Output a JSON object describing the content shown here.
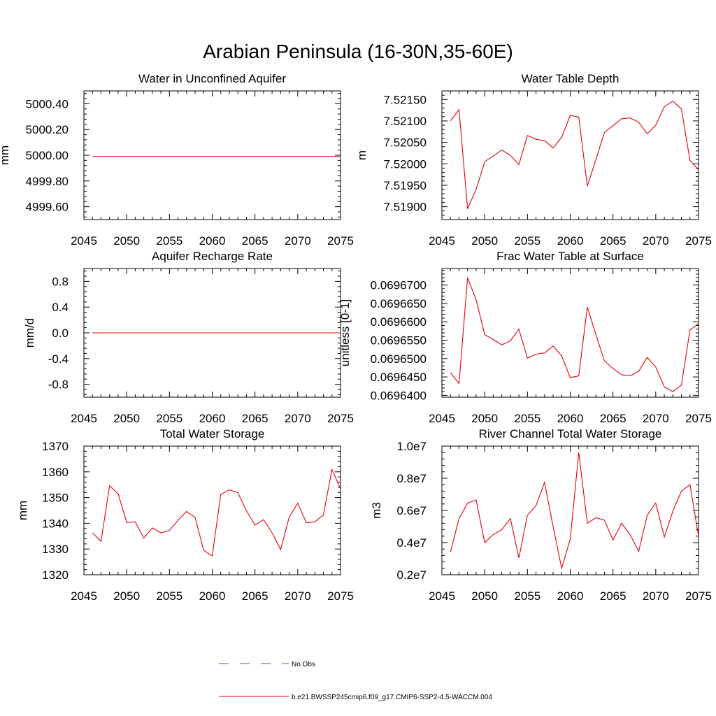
{
  "page": {
    "title": "Arabian Peninsula (16-30N,35-60E)"
  },
  "legend": {
    "placement": "bottom-center",
    "entries": [
      {
        "label": "No Obs",
        "color": "#5555aa",
        "dash": "dashed"
      },
      {
        "label": "b.e21.BWSSP245cmip6.f09_g17.CMIP6-SSP2-4.5-WACCM.004",
        "color": "#e8000b",
        "dash": "solid"
      }
    ]
  },
  "chart_data": [
    {
      "type": "line",
      "title": "Water in Unconfined Aquifer",
      "ylabel": "mm",
      "xlim": [
        2045,
        2075
      ],
      "ylim": [
        4999.5,
        5000.5
      ],
      "xticks": [
        2045,
        2050,
        2055,
        2060,
        2065,
        2070,
        2075
      ],
      "yticks": [
        {
          "value": 4999.6,
          "label": "4999.60"
        },
        {
          "value": 4999.8,
          "label": "4999.80"
        },
        {
          "value": 5000.0,
          "label": "5000.00"
        },
        {
          "value": 5000.2,
          "label": "5000.20"
        },
        {
          "value": 5000.4,
          "label": "5000.40"
        }
      ],
      "series": [
        {
          "color": "#e8000b",
          "x": [
            2046,
            2047,
            2048,
            2049,
            2050,
            2051,
            2052,
            2053,
            2054,
            2055,
            2056,
            2057,
            2058,
            2059,
            2060,
            2061,
            2062,
            2063,
            2064,
            2065,
            2066,
            2067,
            2068,
            2069,
            2070,
            2071,
            2072,
            2073,
            2074,
            2075
          ],
          "y": [
            4999.99,
            4999.99,
            4999.99,
            4999.99,
            4999.99,
            4999.99,
            4999.99,
            4999.99,
            4999.99,
            4999.99,
            4999.99,
            4999.99,
            4999.99,
            4999.99,
            4999.99,
            4999.99,
            4999.99,
            4999.99,
            4999.99,
            4999.99,
            4999.99,
            4999.99,
            4999.99,
            4999.99,
            4999.99,
            4999.99,
            4999.99,
            4999.99,
            4999.99,
            4999.99
          ]
        }
      ]
    },
    {
      "type": "line",
      "title": "Water Table Depth",
      "ylabel": "m",
      "xlim": [
        2045,
        2075
      ],
      "ylim": [
        7.5187,
        7.5217
      ],
      "xticks": [
        2045,
        2050,
        2055,
        2060,
        2065,
        2070,
        2075
      ],
      "yticks": [
        {
          "value": 7.519,
          "label": "7.51900"
        },
        {
          "value": 7.5195,
          "label": "7.51950"
        },
        {
          "value": 7.52,
          "label": "7.52000"
        },
        {
          "value": 7.5205,
          "label": "7.52050"
        },
        {
          "value": 7.521,
          "label": "7.52100"
        },
        {
          "value": 7.5215,
          "label": "7.52150"
        }
      ],
      "series": [
        {
          "color": "#e8000b",
          "x": [
            2046,
            2047,
            2048,
            2049,
            2050,
            2051,
            2052,
            2053,
            2054,
            2055,
            2056,
            2057,
            2058,
            2059,
            2060,
            2061,
            2062,
            2063,
            2064,
            2065,
            2066,
            2067,
            2068,
            2069,
            2070,
            2071,
            2072,
            2073,
            2074,
            2075
          ],
          "y": [
            7.521,
            7.52126,
            7.51895,
            7.5194,
            7.52005,
            7.52018,
            7.52032,
            7.5202,
            7.51998,
            7.52066,
            7.52057,
            7.52054,
            7.52037,
            7.52062,
            7.52113,
            7.52109,
            7.51948,
            7.5201,
            7.52073,
            7.52089,
            7.52105,
            7.52107,
            7.52097,
            7.5207,
            7.5209,
            7.52133,
            7.52146,
            7.52128,
            7.52008,
            7.51986
          ]
        }
      ]
    },
    {
      "type": "line",
      "title": "Aquifer Recharge Rate",
      "ylabel": "mm/d",
      "xlim": [
        2045,
        2075
      ],
      "ylim": [
        -1.0,
        1.0
      ],
      "xticks": [
        2045,
        2050,
        2055,
        2060,
        2065,
        2070,
        2075
      ],
      "yticks": [
        {
          "value": -0.8,
          "label": "-0.8"
        },
        {
          "value": -0.4,
          "label": "-0.4"
        },
        {
          "value": 0.0,
          "label": "0.0"
        },
        {
          "value": 0.4,
          "label": "0.4"
        },
        {
          "value": 0.8,
          "label": "0.8"
        }
      ],
      "series": [
        {
          "color": "#e8000b",
          "x": [
            2046,
            2047,
            2048,
            2049,
            2050,
            2051,
            2052,
            2053,
            2054,
            2055,
            2056,
            2057,
            2058,
            2059,
            2060,
            2061,
            2062,
            2063,
            2064,
            2065,
            2066,
            2067,
            2068,
            2069,
            2070,
            2071,
            2072,
            2073,
            2074,
            2075
          ],
          "y": [
            0,
            0,
            0,
            0,
            0,
            0,
            0,
            0,
            0,
            0,
            0,
            0,
            0,
            0,
            0,
            0,
            0,
            0,
            0,
            0,
            0,
            0,
            0,
            0,
            0,
            0,
            0,
            0,
            0,
            0
          ]
        }
      ]
    },
    {
      "type": "line",
      "title": "Frac Water Table at Surface",
      "ylabel": "unitless [0-1]",
      "xlim": [
        2045,
        2075
      ],
      "ylim": [
        0.0696395,
        0.0696745
      ],
      "xticks": [
        2045,
        2050,
        2055,
        2060,
        2065,
        2070,
        2075
      ],
      "yticks": [
        {
          "value": 0.06964,
          "label": "0.0696400"
        },
        {
          "value": 0.069645,
          "label": "0.0696450"
        },
        {
          "value": 0.06965,
          "label": "0.0696500"
        },
        {
          "value": 0.069655,
          "label": "0.0696550"
        },
        {
          "value": 0.06966,
          "label": "0.0696600"
        },
        {
          "value": 0.069665,
          "label": "0.0696650"
        },
        {
          "value": 0.06967,
          "label": "0.0696700"
        }
      ],
      "series": [
        {
          "color": "#e8000b",
          "x": [
            2046,
            2047,
            2048,
            2049,
            2050,
            2051,
            2052,
            2053,
            2054,
            2055,
            2056,
            2057,
            2058,
            2059,
            2060,
            2061,
            2062,
            2063,
            2064,
            2065,
            2066,
            2067,
            2068,
            2069,
            2070,
            2071,
            2072,
            2073,
            2074,
            2075
          ],
          "y": [
            0.0696462,
            0.0696432,
            0.069672,
            0.069666,
            0.0696565,
            0.0696552,
            0.0696537,
            0.0696548,
            0.069658,
            0.0696501,
            0.0696512,
            0.0696515,
            0.0696534,
            0.0696507,
            0.0696448,
            0.0696453,
            0.069664,
            0.0696565,
            0.0696494,
            0.0696473,
            0.0696456,
            0.0696453,
            0.0696465,
            0.0696503,
            0.0696477,
            0.0696423,
            0.069641,
            0.0696428,
            0.0696578,
            0.0696595
          ]
        }
      ]
    },
    {
      "type": "line",
      "title": "Total Water Storage",
      "ylabel": "mm",
      "xlim": [
        2045,
        2075
      ],
      "ylim": [
        1320,
        1370
      ],
      "xticks": [
        2045,
        2050,
        2055,
        2060,
        2065,
        2070,
        2075
      ],
      "yticks": [
        {
          "value": 1320,
          "label": "1320"
        },
        {
          "value": 1330,
          "label": "1330"
        },
        {
          "value": 1340,
          "label": "1340"
        },
        {
          "value": 1350,
          "label": "1350"
        },
        {
          "value": 1360,
          "label": "1360"
        },
        {
          "value": 1370,
          "label": "1370"
        }
      ],
      "series": [
        {
          "color": "#e8000b",
          "x": [
            2046,
            2047,
            2048,
            2049,
            2050,
            2051,
            2052,
            2053,
            2054,
            2055,
            2056,
            2057,
            2058,
            2059,
            2060,
            2061,
            2062,
            2063,
            2064,
            2065,
            2066,
            2067,
            2068,
            2069,
            2070,
            2071,
            2072,
            2073,
            2074,
            2075
          ],
          "y": [
            1336.3,
            1333.0,
            1354.6,
            1351.5,
            1340.3,
            1340.6,
            1334.2,
            1338.2,
            1336.3,
            1337.2,
            1341.2,
            1344.6,
            1342.3,
            1329.5,
            1327.3,
            1351.2,
            1353.0,
            1351.9,
            1344.9,
            1339.3,
            1341.4,
            1336.3,
            1329.8,
            1342.4,
            1347.8,
            1340.2,
            1340.6,
            1343.2,
            1361.0,
            1353.3
          ]
        }
      ]
    },
    {
      "type": "line",
      "title": "River Channel Total Water Storage",
      "ylabel": "m3",
      "xlim": [
        2045,
        2075
      ],
      "ylim": [
        2000000,
        10000000
      ],
      "xticks": [
        2045,
        2050,
        2055,
        2060,
        2065,
        2070,
        2075
      ],
      "yticks": [
        {
          "value": 2000000,
          "label": "0.2e7"
        },
        {
          "value": 4000000,
          "label": "0.4e7"
        },
        {
          "value": 6000000,
          "label": "0.6e7"
        },
        {
          "value": 8000000,
          "label": "0.8e7"
        },
        {
          "value": 10000000,
          "label": "1.0e7"
        }
      ],
      "series": [
        {
          "color": "#e8000b",
          "x": [
            2046,
            2047,
            2048,
            2049,
            2050,
            2051,
            2052,
            2053,
            2054,
            2055,
            2056,
            2057,
            2058,
            2059,
            2060,
            2061,
            2062,
            2063,
            2064,
            2065,
            2066,
            2067,
            2068,
            2069,
            2070,
            2071,
            2072,
            2073,
            2074,
            2075
          ],
          "y": [
            3400000,
            5500000,
            6450000,
            6650000,
            4000000,
            4500000,
            4800000,
            5500000,
            3050000,
            5700000,
            6300000,
            7750000,
            5000000,
            2400000,
            4200000,
            9600000,
            5200000,
            5550000,
            5400000,
            4150000,
            5200000,
            4500000,
            3450000,
            5700000,
            6450000,
            4350000,
            5950000,
            7200000,
            7600000,
            4400000
          ]
        }
      ]
    }
  ]
}
